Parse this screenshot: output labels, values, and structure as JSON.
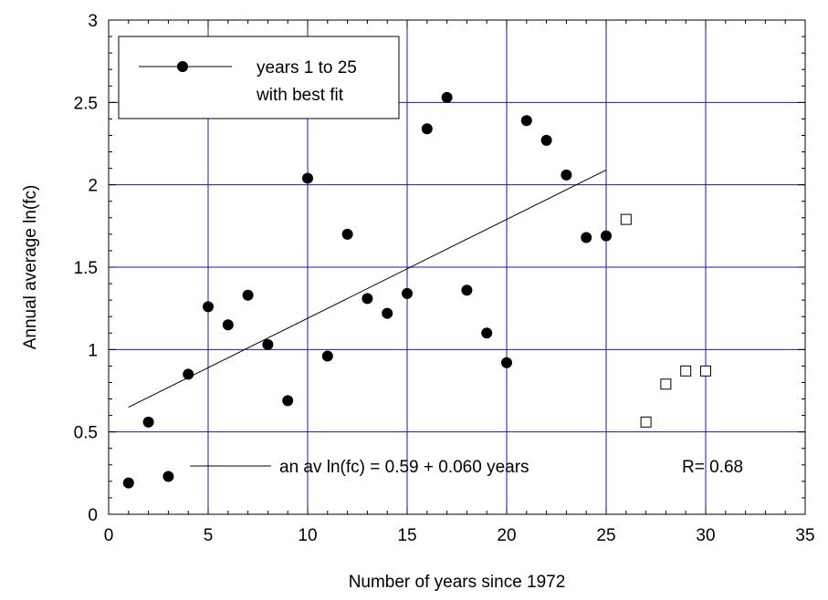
{
  "chart_data": {
    "type": "scatter",
    "xlabel": "Number of years since 1972",
    "ylabel": "Annual average ln(fc)",
    "xlim": [
      0,
      35
    ],
    "ylim": [
      0,
      3
    ],
    "x_ticks": [
      "0",
      "5",
      "10",
      "15",
      "20",
      "25",
      "30",
      "35"
    ],
    "y_ticks": [
      "0",
      "0.5",
      "1",
      "1.5",
      "2",
      "2.5",
      "3"
    ],
    "grid": true,
    "legend": {
      "placement": "top-left",
      "line1": "years 1 to 25",
      "line2": "with best fit"
    },
    "fit_label": "an av ln(fc) = 0.59 + 0.060 years",
    "r_label": "R= 0.68",
    "fit_line": {
      "intercept": 0.59,
      "slope": 0.06,
      "x": [
        1,
        25
      ]
    },
    "series": [
      {
        "marker": "filled-circle",
        "x": [
          1,
          2,
          3,
          4,
          5,
          6,
          7,
          8,
          9,
          10,
          11,
          12,
          13,
          14,
          15,
          16,
          17,
          18,
          19,
          20,
          21,
          22,
          23,
          24,
          25
        ],
        "y": [
          0.19,
          0.56,
          0.23,
          0.85,
          1.26,
          1.15,
          1.33,
          1.03,
          0.69,
          2.04,
          0.96,
          1.7,
          1.31,
          1.22,
          1.34,
          2.34,
          2.53,
          1.36,
          1.1,
          0.92,
          2.39,
          2.27,
          2.06,
          1.68,
          1.69
        ]
      },
      {
        "marker": "open-square",
        "x": [
          26,
          27,
          28,
          29,
          30
        ],
        "y": [
          1.79,
          0.56,
          0.79,
          0.87,
          0.87
        ]
      }
    ],
    "colors": {
      "grid": "#1a1aa6",
      "axis": "#000000",
      "marker": "#000000"
    }
  }
}
